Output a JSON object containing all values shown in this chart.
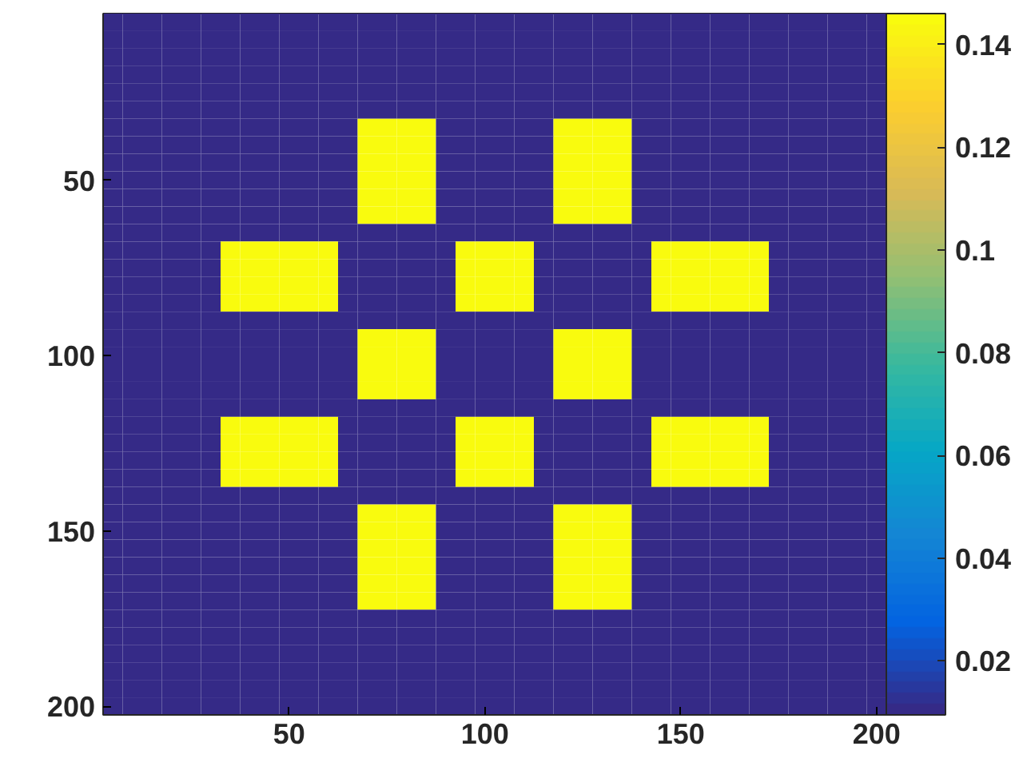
{
  "chart_data": {
    "type": "heatmap",
    "categories": [
      null,
      null,
      null,
      null,
      null,
      null,
      null,
      null,
      null,
      "50",
      null,
      null,
      null,
      null,
      null,
      null,
      null,
      null,
      null,
      "100",
      null,
      null,
      null,
      null,
      null,
      null,
      null,
      null,
      null,
      "150",
      null,
      null,
      null,
      null,
      null,
      null,
      null,
      null,
      null,
      "200"
    ],
    "y_categories": [
      null,
      null,
      null,
      null,
      null,
      null,
      null,
      null,
      null,
      "50",
      null,
      null,
      null,
      null,
      null,
      null,
      null,
      null,
      null,
      "100",
      null,
      null,
      null,
      null,
      null,
      null,
      null,
      null,
      null,
      "150",
      null,
      null,
      null,
      null,
      null,
      null,
      null,
      null,
      null,
      "200"
    ],
    "clim": [
      0.0095,
      0.146
    ],
    "cticks": [
      0.02,
      0.04,
      0.06,
      0.08,
      0.1,
      0.12,
      0.14
    ],
    "cells": [
      [
        0.0095,
        0.0095,
        0.0095,
        0.0095,
        0.0095,
        0.0095,
        0.0095,
        0.0095,
        0.0095,
        0.0095,
        0.0095,
        0.0095,
        0.0095,
        0.0095,
        0.0095,
        0.0095,
        0.0095,
        0.0095,
        0.0095,
        0.0095,
        0.0095,
        0.0095,
        0.0095,
        0.0095,
        0.0095,
        0.0095,
        0.0095,
        0.0095,
        0.0095,
        0.0095,
        0.0095,
        0.0095,
        0.0095,
        0.0095,
        0.0095,
        0.0095,
        0.0095,
        0.0095,
        0.0095,
        0.0095
      ],
      [
        0.0095,
        0.0095,
        0.0095,
        0.0095,
        0.0095,
        0.0095,
        0.0095,
        0.0095,
        0.0095,
        0.0095,
        0.0095,
        0.0095,
        0.0095,
        0.0095,
        0.0095,
        0.0095,
        0.0095,
        0.0095,
        0.0095,
        0.0095,
        0.0095,
        0.0095,
        0.0095,
        0.0095,
        0.0095,
        0.0095,
        0.0095,
        0.0095,
        0.0095,
        0.0095,
        0.0095,
        0.0095,
        0.0095,
        0.0095,
        0.0095,
        0.0095,
        0.0095,
        0.0095,
        0.0095,
        0.0095
      ],
      [
        0.0095,
        0.0095,
        0.0095,
        0.0095,
        0.0095,
        0.0095,
        0.0095,
        0.0095,
        0.0095,
        0.0095,
        0.0095,
        0.0095,
        0.0095,
        0.0095,
        0.0095,
        0.0095,
        0.0095,
        0.0095,
        0.0095,
        0.0095,
        0.0095,
        0.0095,
        0.0095,
        0.0095,
        0.0095,
        0.0095,
        0.0095,
        0.0095,
        0.0095,
        0.0095,
        0.0095,
        0.0095,
        0.0095,
        0.0095,
        0.0095,
        0.0095,
        0.0095,
        0.0095,
        0.0095,
        0.0095
      ],
      [
        0.0095,
        0.0095,
        0.0095,
        0.0095,
        0.0095,
        0.0095,
        0.0095,
        0.0095,
        0.0095,
        0.0095,
        0.0095,
        0.0095,
        0.0095,
        0.0095,
        0.0095,
        0.0095,
        0.0095,
        0.0095,
        0.0095,
        0.0095,
        0.0095,
        0.0095,
        0.0095,
        0.0095,
        0.0095,
        0.0095,
        0.0095,
        0.0095,
        0.0095,
        0.0095,
        0.0095,
        0.0095,
        0.0095,
        0.0095,
        0.0095,
        0.0095,
        0.0095,
        0.0095,
        0.0095,
        0.0095
      ],
      [
        0.0095,
        0.0095,
        0.0095,
        0.0095,
        0.0095,
        0.0095,
        0.0095,
        0.0095,
        0.0095,
        0.0095,
        0.0095,
        0.0095,
        0.0095,
        0.0095,
        0.0095,
        0.0095,
        0.0095,
        0.0095,
        0.0095,
        0.0095,
        0.0095,
        0.0095,
        0.0095,
        0.0095,
        0.0095,
        0.0095,
        0.0095,
        0.0095,
        0.0095,
        0.0095,
        0.0095,
        0.0095,
        0.0095,
        0.0095,
        0.0095,
        0.0095,
        0.0095,
        0.0095,
        0.0095,
        0.0095
      ],
      [
        0.0095,
        0.0095,
        0.0095,
        0.0095,
        0.0095,
        0.0095,
        0.0095,
        0.0095,
        0.0095,
        0.0095,
        0.0095,
        0.0095,
        0.0095,
        0.0095,
        0.0095,
        0.0095,
        0.0095,
        0.0095,
        0.0095,
        0.0095,
        0.0095,
        0.0095,
        0.0095,
        0.0095,
        0.0095,
        0.0095,
        0.0095,
        0.0095,
        0.0095,
        0.0095,
        0.0095,
        0.0095,
        0.0095,
        0.0095,
        0.0095,
        0.0095,
        0.0095,
        0.0095,
        0.0095,
        0.0095
      ],
      [
        0.0095,
        0.0095,
        0.0095,
        0.0095,
        0.0095,
        0.0095,
        0.0095,
        0.0095,
        0.0095,
        0.0095,
        0.0095,
        0.0095,
        0.0095,
        0.146,
        0.146,
        0.146,
        0.146,
        0.0095,
        0.0095,
        0.0095,
        0.0095,
        0.0095,
        0.0095,
        0.146,
        0.146,
        0.146,
        0.146,
        0.0095,
        0.0095,
        0.0095,
        0.0095,
        0.0095,
        0.0095,
        0.0095,
        0.0095,
        0.0095,
        0.0095,
        0.0095,
        0.0095,
        0.0095
      ],
      [
        0.0095,
        0.0095,
        0.0095,
        0.0095,
        0.0095,
        0.0095,
        0.0095,
        0.0095,
        0.0095,
        0.0095,
        0.0095,
        0.0095,
        0.0095,
        0.146,
        0.146,
        0.146,
        0.146,
        0.0095,
        0.0095,
        0.0095,
        0.0095,
        0.0095,
        0.0095,
        0.146,
        0.146,
        0.146,
        0.146,
        0.0095,
        0.0095,
        0.0095,
        0.0095,
        0.0095,
        0.0095,
        0.0095,
        0.0095,
        0.0095,
        0.0095,
        0.0095,
        0.0095,
        0.0095
      ],
      [
        0.0095,
        0.0095,
        0.0095,
        0.0095,
        0.0095,
        0.0095,
        0.0095,
        0.0095,
        0.0095,
        0.0095,
        0.0095,
        0.0095,
        0.0095,
        0.146,
        0.146,
        0.146,
        0.146,
        0.0095,
        0.0095,
        0.0095,
        0.0095,
        0.0095,
        0.0095,
        0.146,
        0.146,
        0.146,
        0.146,
        0.0095,
        0.0095,
        0.0095,
        0.0095,
        0.0095,
        0.0095,
        0.0095,
        0.0095,
        0.0095,
        0.0095,
        0.0095,
        0.0095,
        0.0095
      ],
      [
        0.0095,
        0.0095,
        0.0095,
        0.0095,
        0.0095,
        0.0095,
        0.0095,
        0.0095,
        0.0095,
        0.0095,
        0.0095,
        0.0095,
        0.0095,
        0.146,
        0.146,
        0.146,
        0.146,
        0.0095,
        0.0095,
        0.0095,
        0.0095,
        0.0095,
        0.0095,
        0.146,
        0.146,
        0.146,
        0.146,
        0.0095,
        0.0095,
        0.0095,
        0.0095,
        0.0095,
        0.0095,
        0.0095,
        0.0095,
        0.0095,
        0.0095,
        0.0095,
        0.0095,
        0.0095
      ],
      [
        0.0095,
        0.0095,
        0.0095,
        0.0095,
        0.0095,
        0.0095,
        0.0095,
        0.0095,
        0.0095,
        0.0095,
        0.0095,
        0.0095,
        0.0095,
        0.146,
        0.146,
        0.146,
        0.146,
        0.0095,
        0.0095,
        0.0095,
        0.0095,
        0.0095,
        0.0095,
        0.146,
        0.146,
        0.146,
        0.146,
        0.0095,
        0.0095,
        0.0095,
        0.0095,
        0.0095,
        0.0095,
        0.0095,
        0.0095,
        0.0095,
        0.0095,
        0.0095,
        0.0095,
        0.0095
      ],
      [
        0.0095,
        0.0095,
        0.0095,
        0.0095,
        0.0095,
        0.0095,
        0.0095,
        0.0095,
        0.0095,
        0.0095,
        0.0095,
        0.0095,
        0.0095,
        0.146,
        0.146,
        0.146,
        0.146,
        0.0095,
        0.0095,
        0.0095,
        0.0095,
        0.0095,
        0.0095,
        0.146,
        0.146,
        0.146,
        0.146,
        0.0095,
        0.0095,
        0.0095,
        0.0095,
        0.0095,
        0.0095,
        0.0095,
        0.0095,
        0.0095,
        0.0095,
        0.0095,
        0.0095,
        0.0095
      ],
      [
        0.0095,
        0.0095,
        0.0095,
        0.0095,
        0.0095,
        0.0095,
        0.0095,
        0.0095,
        0.0095,
        0.0095,
        0.0095,
        0.0095,
        0.0095,
        0.0095,
        0.0095,
        0.0095,
        0.0095,
        0.0095,
        0.0095,
        0.0095,
        0.0095,
        0.0095,
        0.0095,
        0.0095,
        0.0095,
        0.0095,
        0.0095,
        0.0095,
        0.0095,
        0.0095,
        0.0095,
        0.0095,
        0.0095,
        0.0095,
        0.0095,
        0.0095,
        0.0095,
        0.0095,
        0.0095,
        0.0095
      ],
      [
        0.0095,
        0.0095,
        0.0095,
        0.0095,
        0.0095,
        0.0095,
        0.146,
        0.146,
        0.146,
        0.146,
        0.146,
        0.146,
        0.0095,
        0.0095,
        0.0095,
        0.0095,
        0.0095,
        0.0095,
        0.146,
        0.146,
        0.146,
        0.146,
        0.0095,
        0.0095,
        0.0095,
        0.0095,
        0.0095,
        0.0095,
        0.146,
        0.146,
        0.146,
        0.146,
        0.146,
        0.146,
        0.0095,
        0.0095,
        0.0095,
        0.0095,
        0.0095,
        0.0095
      ],
      [
        0.0095,
        0.0095,
        0.0095,
        0.0095,
        0.0095,
        0.0095,
        0.146,
        0.146,
        0.146,
        0.146,
        0.146,
        0.146,
        0.0095,
        0.0095,
        0.0095,
        0.0095,
        0.0095,
        0.0095,
        0.146,
        0.146,
        0.146,
        0.146,
        0.0095,
        0.0095,
        0.0095,
        0.0095,
        0.0095,
        0.0095,
        0.146,
        0.146,
        0.146,
        0.146,
        0.146,
        0.146,
        0.0095,
        0.0095,
        0.0095,
        0.0095,
        0.0095,
        0.0095
      ],
      [
        0.0095,
        0.0095,
        0.0095,
        0.0095,
        0.0095,
        0.0095,
        0.146,
        0.146,
        0.146,
        0.146,
        0.146,
        0.146,
        0.0095,
        0.0095,
        0.0095,
        0.0095,
        0.0095,
        0.0095,
        0.146,
        0.146,
        0.146,
        0.146,
        0.0095,
        0.0095,
        0.0095,
        0.0095,
        0.0095,
        0.0095,
        0.146,
        0.146,
        0.146,
        0.146,
        0.146,
        0.146,
        0.0095,
        0.0095,
        0.0095,
        0.0095,
        0.0095,
        0.0095
      ],
      [
        0.0095,
        0.0095,
        0.0095,
        0.0095,
        0.0095,
        0.0095,
        0.146,
        0.146,
        0.146,
        0.146,
        0.146,
        0.146,
        0.0095,
        0.0095,
        0.0095,
        0.0095,
        0.0095,
        0.0095,
        0.146,
        0.146,
        0.146,
        0.146,
        0.0095,
        0.0095,
        0.0095,
        0.0095,
        0.0095,
        0.0095,
        0.146,
        0.146,
        0.146,
        0.146,
        0.146,
        0.146,
        0.0095,
        0.0095,
        0.0095,
        0.0095,
        0.0095,
        0.0095
      ],
      [
        0.0095,
        0.0095,
        0.0095,
        0.0095,
        0.0095,
        0.0095,
        0.0095,
        0.0095,
        0.0095,
        0.0095,
        0.0095,
        0.0095,
        0.0095,
        0.0095,
        0.0095,
        0.0095,
        0.0095,
        0.0095,
        0.0095,
        0.0095,
        0.0095,
        0.0095,
        0.0095,
        0.0095,
        0.0095,
        0.0095,
        0.0095,
        0.0095,
        0.0095,
        0.0095,
        0.0095,
        0.0095,
        0.0095,
        0.0095,
        0.0095,
        0.0095,
        0.0095,
        0.0095,
        0.0095,
        0.0095
      ],
      [
        0.0095,
        0.0095,
        0.0095,
        0.0095,
        0.0095,
        0.0095,
        0.0095,
        0.0095,
        0.0095,
        0.0095,
        0.0095,
        0.0095,
        0.0095,
        0.146,
        0.146,
        0.146,
        0.146,
        0.0095,
        0.0095,
        0.0095,
        0.0095,
        0.0095,
        0.0095,
        0.146,
        0.146,
        0.146,
        0.146,
        0.0095,
        0.0095,
        0.0095,
        0.0095,
        0.0095,
        0.0095,
        0.0095,
        0.0095,
        0.0095,
        0.0095,
        0.0095,
        0.0095,
        0.0095
      ],
      [
        0.0095,
        0.0095,
        0.0095,
        0.0095,
        0.0095,
        0.0095,
        0.0095,
        0.0095,
        0.0095,
        0.0095,
        0.0095,
        0.0095,
        0.0095,
        0.146,
        0.146,
        0.146,
        0.146,
        0.0095,
        0.0095,
        0.0095,
        0.0095,
        0.0095,
        0.0095,
        0.146,
        0.146,
        0.146,
        0.146,
        0.0095,
        0.0095,
        0.0095,
        0.0095,
        0.0095,
        0.0095,
        0.0095,
        0.0095,
        0.0095,
        0.0095,
        0.0095,
        0.0095,
        0.0095
      ],
      [
        0.0095,
        0.0095,
        0.0095,
        0.0095,
        0.0095,
        0.0095,
        0.0095,
        0.0095,
        0.0095,
        0.0095,
        0.0095,
        0.0095,
        0.0095,
        0.146,
        0.146,
        0.146,
        0.146,
        0.0095,
        0.0095,
        0.0095,
        0.0095,
        0.0095,
        0.0095,
        0.146,
        0.146,
        0.146,
        0.146,
        0.0095,
        0.0095,
        0.0095,
        0.0095,
        0.0095,
        0.0095,
        0.0095,
        0.0095,
        0.0095,
        0.0095,
        0.0095,
        0.0095,
        0.0095
      ],
      [
        0.0095,
        0.0095,
        0.0095,
        0.0095,
        0.0095,
        0.0095,
        0.0095,
        0.0095,
        0.0095,
        0.0095,
        0.0095,
        0.0095,
        0.0095,
        0.146,
        0.146,
        0.146,
        0.146,
        0.0095,
        0.0095,
        0.0095,
        0.0095,
        0.0095,
        0.0095,
        0.146,
        0.146,
        0.146,
        0.146,
        0.0095,
        0.0095,
        0.0095,
        0.0095,
        0.0095,
        0.0095,
        0.0095,
        0.0095,
        0.0095,
        0.0095,
        0.0095,
        0.0095,
        0.0095
      ],
      [
        0.0095,
        0.0095,
        0.0095,
        0.0095,
        0.0095,
        0.0095,
        0.0095,
        0.0095,
        0.0095,
        0.0095,
        0.0095,
        0.0095,
        0.0095,
        0.0095,
        0.0095,
        0.0095,
        0.0095,
        0.0095,
        0.0095,
        0.0095,
        0.0095,
        0.0095,
        0.0095,
        0.0095,
        0.0095,
        0.0095,
        0.0095,
        0.0095,
        0.0095,
        0.0095,
        0.0095,
        0.0095,
        0.0095,
        0.0095,
        0.0095,
        0.0095,
        0.0095,
        0.0095,
        0.0095,
        0.0095
      ],
      [
        0.0095,
        0.0095,
        0.0095,
        0.0095,
        0.0095,
        0.0095,
        0.146,
        0.146,
        0.146,
        0.146,
        0.146,
        0.146,
        0.0095,
        0.0095,
        0.0095,
        0.0095,
        0.0095,
        0.0095,
        0.146,
        0.146,
        0.146,
        0.146,
        0.0095,
        0.0095,
        0.0095,
        0.0095,
        0.0095,
        0.0095,
        0.146,
        0.146,
        0.146,
        0.146,
        0.146,
        0.146,
        0.0095,
        0.0095,
        0.0095,
        0.0095,
        0.0095,
        0.0095
      ],
      [
        0.0095,
        0.0095,
        0.0095,
        0.0095,
        0.0095,
        0.0095,
        0.146,
        0.146,
        0.146,
        0.146,
        0.146,
        0.146,
        0.0095,
        0.0095,
        0.0095,
        0.0095,
        0.0095,
        0.0095,
        0.146,
        0.146,
        0.146,
        0.146,
        0.0095,
        0.0095,
        0.0095,
        0.0095,
        0.0095,
        0.0095,
        0.146,
        0.146,
        0.146,
        0.146,
        0.146,
        0.146,
        0.0095,
        0.0095,
        0.0095,
        0.0095,
        0.0095,
        0.0095
      ],
      [
        0.0095,
        0.0095,
        0.0095,
        0.0095,
        0.0095,
        0.0095,
        0.146,
        0.146,
        0.146,
        0.146,
        0.146,
        0.146,
        0.0095,
        0.0095,
        0.0095,
        0.0095,
        0.0095,
        0.0095,
        0.146,
        0.146,
        0.146,
        0.146,
        0.0095,
        0.0095,
        0.0095,
        0.0095,
        0.0095,
        0.0095,
        0.146,
        0.146,
        0.146,
        0.146,
        0.146,
        0.146,
        0.0095,
        0.0095,
        0.0095,
        0.0095,
        0.0095,
        0.0095
      ],
      [
        0.0095,
        0.0095,
        0.0095,
        0.0095,
        0.0095,
        0.0095,
        0.146,
        0.146,
        0.146,
        0.146,
        0.146,
        0.146,
        0.0095,
        0.0095,
        0.0095,
        0.0095,
        0.0095,
        0.0095,
        0.146,
        0.146,
        0.146,
        0.146,
        0.0095,
        0.0095,
        0.0095,
        0.0095,
        0.0095,
        0.0095,
        0.146,
        0.146,
        0.146,
        0.146,
        0.146,
        0.146,
        0.0095,
        0.0095,
        0.0095,
        0.0095,
        0.0095,
        0.0095
      ],
      [
        0.0095,
        0.0095,
        0.0095,
        0.0095,
        0.0095,
        0.0095,
        0.0095,
        0.0095,
        0.0095,
        0.0095,
        0.0095,
        0.0095,
        0.0095,
        0.0095,
        0.0095,
        0.0095,
        0.0095,
        0.0095,
        0.0095,
        0.0095,
        0.0095,
        0.0095,
        0.0095,
        0.0095,
        0.0095,
        0.0095,
        0.0095,
        0.0095,
        0.0095,
        0.0095,
        0.0095,
        0.0095,
        0.0095,
        0.0095,
        0.0095,
        0.0095,
        0.0095,
        0.0095,
        0.0095,
        0.0095
      ],
      [
        0.0095,
        0.0095,
        0.0095,
        0.0095,
        0.0095,
        0.0095,
        0.0095,
        0.0095,
        0.0095,
        0.0095,
        0.0095,
        0.0095,
        0.0095,
        0.146,
        0.146,
        0.146,
        0.146,
        0.0095,
        0.0095,
        0.0095,
        0.0095,
        0.0095,
        0.0095,
        0.146,
        0.146,
        0.146,
        0.146,
        0.0095,
        0.0095,
        0.0095,
        0.0095,
        0.0095,
        0.0095,
        0.0095,
        0.0095,
        0.0095,
        0.0095,
        0.0095,
        0.0095,
        0.0095
      ],
      [
        0.0095,
        0.0095,
        0.0095,
        0.0095,
        0.0095,
        0.0095,
        0.0095,
        0.0095,
        0.0095,
        0.0095,
        0.0095,
        0.0095,
        0.0095,
        0.146,
        0.146,
        0.146,
        0.146,
        0.0095,
        0.0095,
        0.0095,
        0.0095,
        0.0095,
        0.0095,
        0.146,
        0.146,
        0.146,
        0.146,
        0.0095,
        0.0095,
        0.0095,
        0.0095,
        0.0095,
        0.0095,
        0.0095,
        0.0095,
        0.0095,
        0.0095,
        0.0095,
        0.0095,
        0.0095
      ],
      [
        0.0095,
        0.0095,
        0.0095,
        0.0095,
        0.0095,
        0.0095,
        0.0095,
        0.0095,
        0.0095,
        0.0095,
        0.0095,
        0.0095,
        0.0095,
        0.146,
        0.146,
        0.146,
        0.146,
        0.0095,
        0.0095,
        0.0095,
        0.0095,
        0.0095,
        0.0095,
        0.146,
        0.146,
        0.146,
        0.146,
        0.0095,
        0.0095,
        0.0095,
        0.0095,
        0.0095,
        0.0095,
        0.0095,
        0.0095,
        0.0095,
        0.0095,
        0.0095,
        0.0095,
        0.0095
      ],
      [
        0.0095,
        0.0095,
        0.0095,
        0.0095,
        0.0095,
        0.0095,
        0.0095,
        0.0095,
        0.0095,
        0.0095,
        0.0095,
        0.0095,
        0.0095,
        0.146,
        0.146,
        0.146,
        0.146,
        0.0095,
        0.0095,
        0.0095,
        0.0095,
        0.0095,
        0.0095,
        0.146,
        0.146,
        0.146,
        0.146,
        0.0095,
        0.0095,
        0.0095,
        0.0095,
        0.0095,
        0.0095,
        0.0095,
        0.0095,
        0.0095,
        0.0095,
        0.0095,
        0.0095,
        0.0095
      ],
      [
        0.0095,
        0.0095,
        0.0095,
        0.0095,
        0.0095,
        0.0095,
        0.0095,
        0.0095,
        0.0095,
        0.0095,
        0.0095,
        0.0095,
        0.0095,
        0.146,
        0.146,
        0.146,
        0.146,
        0.0095,
        0.0095,
        0.0095,
        0.0095,
        0.0095,
        0.0095,
        0.146,
        0.146,
        0.146,
        0.146,
        0.0095,
        0.0095,
        0.0095,
        0.0095,
        0.0095,
        0.0095,
        0.0095,
        0.0095,
        0.0095,
        0.0095,
        0.0095,
        0.0095,
        0.0095
      ],
      [
        0.0095,
        0.0095,
        0.0095,
        0.0095,
        0.0095,
        0.0095,
        0.0095,
        0.0095,
        0.0095,
        0.0095,
        0.0095,
        0.0095,
        0.0095,
        0.146,
        0.146,
        0.146,
        0.146,
        0.0095,
        0.0095,
        0.0095,
        0.0095,
        0.0095,
        0.0095,
        0.146,
        0.146,
        0.146,
        0.146,
        0.0095,
        0.0095,
        0.0095,
        0.0095,
        0.0095,
        0.0095,
        0.0095,
        0.0095,
        0.0095,
        0.0095,
        0.0095,
        0.0095,
        0.0095
      ],
      [
        0.0095,
        0.0095,
        0.0095,
        0.0095,
        0.0095,
        0.0095,
        0.0095,
        0.0095,
        0.0095,
        0.0095,
        0.0095,
        0.0095,
        0.0095,
        0.0095,
        0.0095,
        0.0095,
        0.0095,
        0.0095,
        0.0095,
        0.0095,
        0.0095,
        0.0095,
        0.0095,
        0.0095,
        0.0095,
        0.0095,
        0.0095,
        0.0095,
        0.0095,
        0.0095,
        0.0095,
        0.0095,
        0.0095,
        0.0095,
        0.0095,
        0.0095,
        0.0095,
        0.0095,
        0.0095,
        0.0095
      ],
      [
        0.0095,
        0.0095,
        0.0095,
        0.0095,
        0.0095,
        0.0095,
        0.0095,
        0.0095,
        0.0095,
        0.0095,
        0.0095,
        0.0095,
        0.0095,
        0.0095,
        0.0095,
        0.0095,
        0.0095,
        0.0095,
        0.0095,
        0.0095,
        0.0095,
        0.0095,
        0.0095,
        0.0095,
        0.0095,
        0.0095,
        0.0095,
        0.0095,
        0.0095,
        0.0095,
        0.0095,
        0.0095,
        0.0095,
        0.0095,
        0.0095,
        0.0095,
        0.0095,
        0.0095,
        0.0095,
        0.0095
      ],
      [
        0.0095,
        0.0095,
        0.0095,
        0.0095,
        0.0095,
        0.0095,
        0.0095,
        0.0095,
        0.0095,
        0.0095,
        0.0095,
        0.0095,
        0.0095,
        0.0095,
        0.0095,
        0.0095,
        0.0095,
        0.0095,
        0.0095,
        0.0095,
        0.0095,
        0.0095,
        0.0095,
        0.0095,
        0.0095,
        0.0095,
        0.0095,
        0.0095,
        0.0095,
        0.0095,
        0.0095,
        0.0095,
        0.0095,
        0.0095,
        0.0095,
        0.0095,
        0.0095,
        0.0095,
        0.0095,
        0.0095
      ],
      [
        0.0095,
        0.0095,
        0.0095,
        0.0095,
        0.0095,
        0.0095,
        0.0095,
        0.0095,
        0.0095,
        0.0095,
        0.0095,
        0.0095,
        0.0095,
        0.0095,
        0.0095,
        0.0095,
        0.0095,
        0.0095,
        0.0095,
        0.0095,
        0.0095,
        0.0095,
        0.0095,
        0.0095,
        0.0095,
        0.0095,
        0.0095,
        0.0095,
        0.0095,
        0.0095,
        0.0095,
        0.0095,
        0.0095,
        0.0095,
        0.0095,
        0.0095,
        0.0095,
        0.0095,
        0.0095,
        0.0095
      ],
      [
        0.0095,
        0.0095,
        0.0095,
        0.0095,
        0.0095,
        0.0095,
        0.0095,
        0.0095,
        0.0095,
        0.0095,
        0.0095,
        0.0095,
        0.0095,
        0.0095,
        0.0095,
        0.0095,
        0.0095,
        0.0095,
        0.0095,
        0.0095,
        0.0095,
        0.0095,
        0.0095,
        0.0095,
        0.0095,
        0.0095,
        0.0095,
        0.0095,
        0.0095,
        0.0095,
        0.0095,
        0.0095,
        0.0095,
        0.0095,
        0.0095,
        0.0095,
        0.0095,
        0.0095,
        0.0095,
        0.0095
      ],
      [
        0.0095,
        0.0095,
        0.0095,
        0.0095,
        0.0095,
        0.0095,
        0.0095,
        0.0095,
        0.0095,
        0.0095,
        0.0095,
        0.0095,
        0.0095,
        0.0095,
        0.0095,
        0.0095,
        0.0095,
        0.0095,
        0.0095,
        0.0095,
        0.0095,
        0.0095,
        0.0095,
        0.0095,
        0.0095,
        0.0095,
        0.0095,
        0.0095,
        0.0095,
        0.0095,
        0.0095,
        0.0095,
        0.0095,
        0.0095,
        0.0095,
        0.0095,
        0.0095,
        0.0095,
        0.0095,
        0.0095
      ]
    ]
  }
}
